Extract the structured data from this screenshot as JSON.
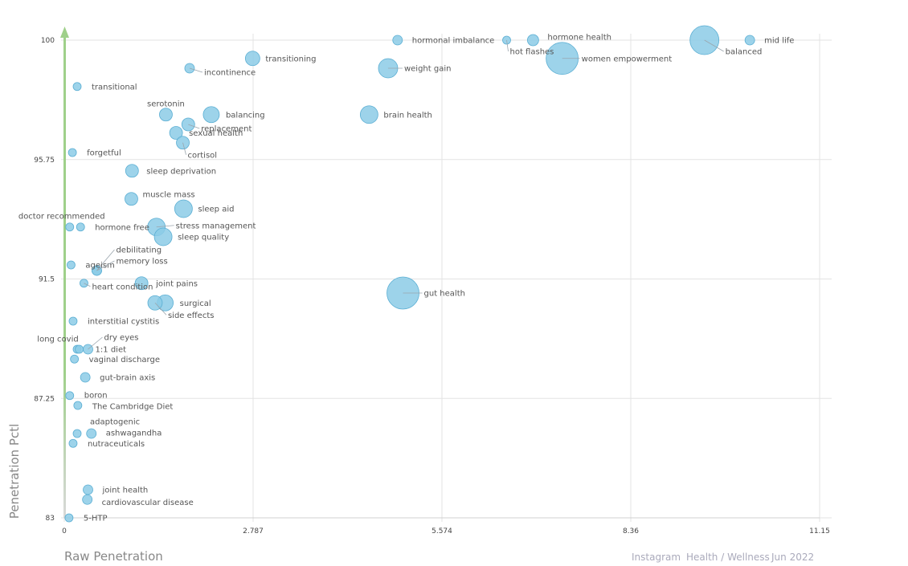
{
  "axes": {
    "xlabel": "Raw Penetration",
    "ylabel": "Penetration Pctl",
    "xlim": [
      0,
      11.15
    ],
    "ylim": [
      83,
      100
    ],
    "x_ticks": [
      "0",
      "2.787",
      "5.574",
      "8.36",
      "11.15"
    ],
    "y_ticks": [
      "100",
      "95.75",
      "91.5",
      "87.25",
      "83"
    ]
  },
  "footer": {
    "platform": "Instagram",
    "category": "Health / Wellness",
    "period": "Jun 2022"
  },
  "colors": {
    "bubble": "#8ccbe6",
    "bubble_stroke": "#5aaed3",
    "axis_line": "#9fd08a"
  },
  "chart_data": {
    "type": "scatter",
    "xlabel": "Raw Penetration",
    "ylabel": "Penetration Pctl",
    "xlim": [
      0,
      11.15
    ],
    "ylim": [
      83,
      100
    ],
    "grid": true,
    "points": [
      {
        "label": "mid life",
        "x": 10.12,
        "y": 100,
        "size": 6
      },
      {
        "label": "balanced",
        "x": 9.45,
        "y": 100,
        "size": 18
      },
      {
        "label": "hormone health",
        "x": 6.92,
        "y": 100,
        "size": 7
      },
      {
        "label": "hot flashes",
        "x": 6.53,
        "y": 100,
        "size": 5
      },
      {
        "label": "hormonal imbalance",
        "x": 4.92,
        "y": 100,
        "size": 6
      },
      {
        "label": "women empowerment",
        "x": 7.35,
        "y": 99.35,
        "size": 20
      },
      {
        "label": "transitioning",
        "x": 2.78,
        "y": 99.35,
        "size": 9
      },
      {
        "label": "incontinence",
        "x": 1.85,
        "y": 99.0,
        "size": 6
      },
      {
        "label": "weight gain",
        "x": 4.78,
        "y": 99.0,
        "size": 12
      },
      {
        "label": "transitional",
        "x": 0.19,
        "y": 98.35,
        "size": 5
      },
      {
        "label": "serotonin",
        "x": 1.5,
        "y": 97.35,
        "size": 8
      },
      {
        "label": "balancing",
        "x": 2.17,
        "y": 97.35,
        "size": 10
      },
      {
        "label": "brain health",
        "x": 4.5,
        "y": 97.35,
        "size": 11
      },
      {
        "label": "replacement",
        "x": 1.83,
        "y": 97.0,
        "size": 8
      },
      {
        "label": "sexual health",
        "x": 1.65,
        "y": 96.7,
        "size": 8
      },
      {
        "label": "cortisol",
        "x": 1.75,
        "y": 96.35,
        "size": 8
      },
      {
        "label": "forgetful",
        "x": 0.12,
        "y": 96.0,
        "size": 5
      },
      {
        "label": "sleep deprivation",
        "x": 1.0,
        "y": 95.35,
        "size": 8
      },
      {
        "label": "muscle mass",
        "x": 0.99,
        "y": 94.35,
        "size": 8
      },
      {
        "label": "sleep aid",
        "x": 1.76,
        "y": 94.0,
        "size": 11
      },
      {
        "label": "doctor recommended",
        "x": 0.08,
        "y": 93.35,
        "size": 5
      },
      {
        "label": "hormone free",
        "x": 0.24,
        "y": 93.35,
        "size": 5
      },
      {
        "label": "stress management",
        "x": 1.36,
        "y": 93.35,
        "size": 11
      },
      {
        "label": "sleep quality",
        "x": 1.46,
        "y": 93.0,
        "size": 11
      },
      {
        "label": "debilitating",
        "x": 0.48,
        "y": 91.8,
        "size": 6
      },
      {
        "label": "ageism",
        "x": 0.1,
        "y": 92.0,
        "size": 5
      },
      {
        "label": "memory loss",
        "x": 0.48,
        "y": 91.8,
        "size": 6
      },
      {
        "label": "joint pains",
        "x": 1.14,
        "y": 91.35,
        "size": 8
      },
      {
        "label": "heart condition",
        "x": 0.29,
        "y": 91.35,
        "size": 5
      },
      {
        "label": "surgical",
        "x": 1.49,
        "y": 90.65,
        "size": 10
      },
      {
        "label": "side effects",
        "x": 1.34,
        "y": 90.65,
        "size": 9
      },
      {
        "label": "gut health",
        "x": 5.0,
        "y": 91.0,
        "size": 20
      },
      {
        "label": "interstitial cystitis",
        "x": 0.13,
        "y": 90.0,
        "size": 5
      },
      {
        "label": "long covid",
        "x": 0.19,
        "y": 89.0,
        "size": 5
      },
      {
        "label": "dry eyes",
        "x": 0.35,
        "y": 89.0,
        "size": 6
      },
      {
        "label": "1:1 diet",
        "x": 0.22,
        "y": 89.0,
        "size": 5
      },
      {
        "label": "vaginal discharge",
        "x": 0.15,
        "y": 88.65,
        "size": 5
      },
      {
        "label": "gut-brain axis",
        "x": 0.31,
        "y": 88.0,
        "size": 6
      },
      {
        "label": "boron",
        "x": 0.08,
        "y": 87.35,
        "size": 5
      },
      {
        "label": "The Cambridge Diet",
        "x": 0.2,
        "y": 87.0,
        "size": 5
      },
      {
        "label": "adaptogenic",
        "x": 0.19,
        "y": 86.0,
        "size": 5
      },
      {
        "label": "ashwagandha",
        "x": 0.4,
        "y": 86.0,
        "size": 6
      },
      {
        "label": "nutraceuticals",
        "x": 0.13,
        "y": 85.65,
        "size": 5
      },
      {
        "label": "joint health",
        "x": 0.35,
        "y": 84.0,
        "size": 6
      },
      {
        "label": "cardiovascular disease",
        "x": 0.34,
        "y": 83.65,
        "size": 6
      },
      {
        "label": "5-HTP",
        "x": 0.07,
        "y": 83.0,
        "size": 5
      }
    ]
  }
}
